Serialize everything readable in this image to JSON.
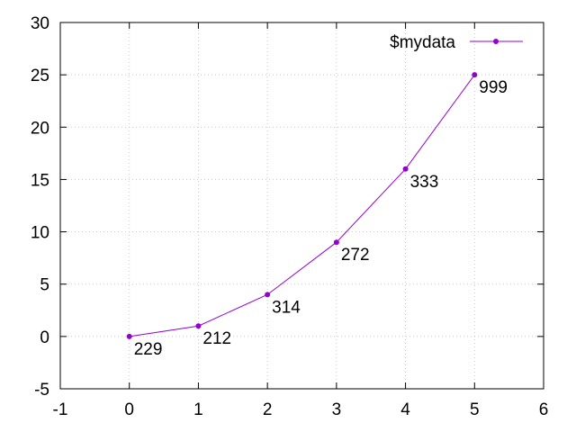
{
  "chart_data": {
    "type": "line",
    "title": "",
    "xlabel": "",
    "ylabel": "",
    "xlim": [
      -1,
      6
    ],
    "ylim": [
      -5,
      30
    ],
    "xticks": [
      -1,
      0,
      1,
      2,
      3,
      4,
      5,
      6
    ],
    "yticks": [
      -5,
      0,
      5,
      10,
      15,
      20,
      25,
      30
    ],
    "xtick_labels": [
      "-1",
      "0",
      "1",
      "2",
      "3",
      "4",
      "5",
      "6"
    ],
    "ytick_labels": [
      "-5",
      "0",
      "5",
      "10",
      "15",
      "20",
      "25",
      "30"
    ],
    "grid": true,
    "legend": {
      "position": "top-right",
      "entries": [
        "$mydata"
      ]
    },
    "series": [
      {
        "name": "$mydata",
        "color": "#9400d3",
        "marker": "circle",
        "x": [
          0,
          1,
          2,
          3,
          4,
          5
        ],
        "y": [
          0,
          1,
          4,
          9,
          16,
          25
        ],
        "point_labels": [
          "229",
          "212",
          "314",
          "272",
          "333",
          "999"
        ]
      }
    ]
  }
}
